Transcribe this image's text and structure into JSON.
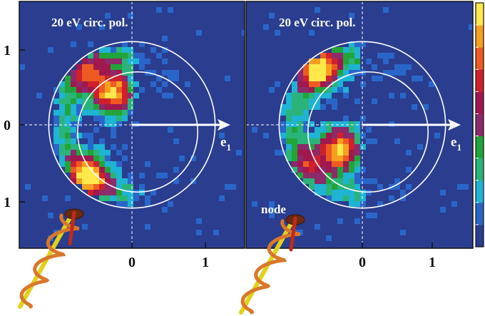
{
  "chart_data": {
    "type": "heatmap",
    "colormap": [
      "#2a3d8f",
      "#2a66c9",
      "#1fb3d4",
      "#2ab47a",
      "#22a43a",
      "#8c2a6a",
      "#a0184e",
      "#d0202e",
      "#ef5a22",
      "#f7a020",
      "#ffe84a"
    ],
    "background_color": "#2a3d8f",
    "x_ticks": [
      "0",
      "1"
    ],
    "y_ticks": [
      "1",
      "0",
      "1"
    ],
    "axis_arrow_label": "e",
    "axis_arrow_subscript": "1",
    "xlim": [
      -1.4,
      1.4
    ],
    "ylim": [
      -1.6,
      1.5
    ],
    "circles_radius": [
      1.08,
      0.78
    ],
    "panels": [
      {
        "title": "20 eV circ. pol.",
        "annotation": "",
        "hotspots": [
          {
            "x": -0.28,
            "y": 0.45,
            "intensity": 1.0
          },
          {
            "x": -0.62,
            "y": -0.72,
            "intensity": 0.95
          },
          {
            "x": -0.72,
            "y": 0.8,
            "intensity": 0.45
          }
        ],
        "weak_side": "right"
      },
      {
        "title": "20 eV circ. pol.",
        "annotation": "node",
        "hotspots": [
          {
            "x": -0.62,
            "y": 0.78,
            "intensity": 0.95
          },
          {
            "x": -0.32,
            "y": -0.35,
            "intensity": 1.0
          },
          {
            "x": -0.82,
            "y": -0.55,
            "intensity": 0.35
          }
        ],
        "weak_side": "right"
      }
    ],
    "colorbar": {
      "orientation": "vertical"
    }
  }
}
